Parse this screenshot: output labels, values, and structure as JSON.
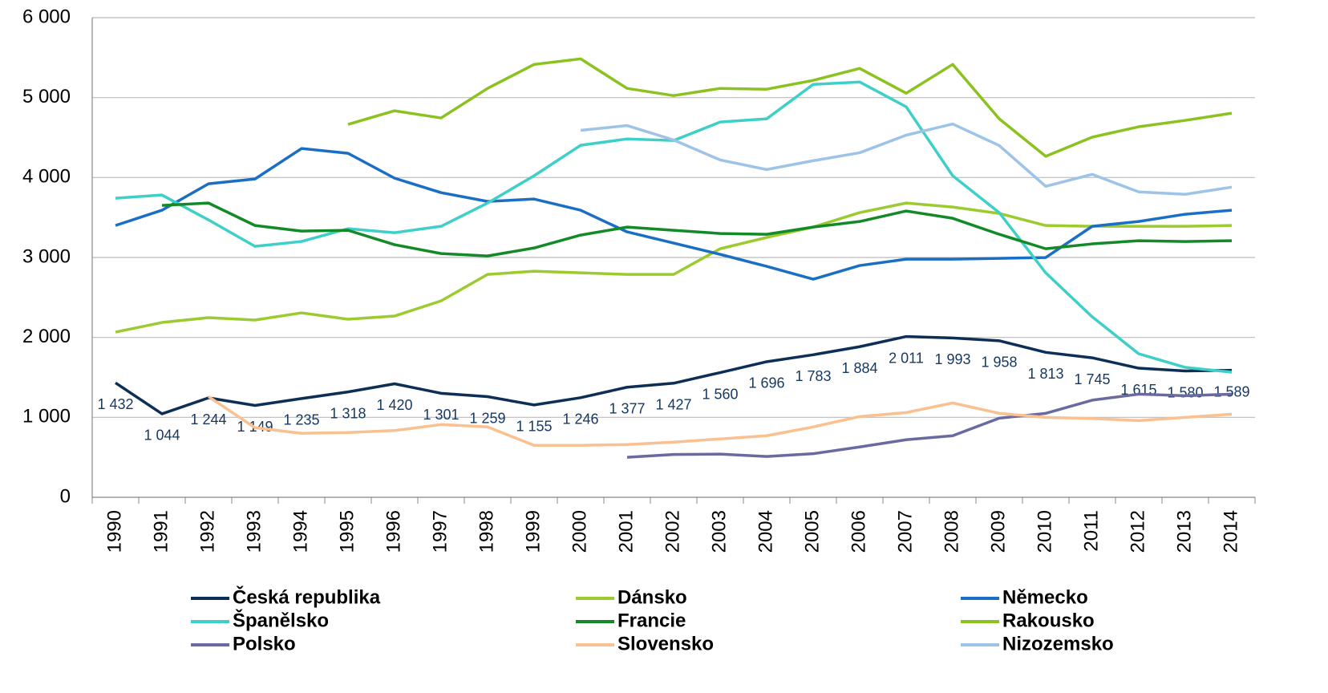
{
  "chart_data": {
    "type": "line",
    "categories": [
      "1990",
      "1991",
      "1992",
      "1993",
      "1994",
      "1995",
      "1996",
      "1997",
      "1998",
      "1999",
      "2000",
      "2001",
      "2002",
      "2003",
      "2004",
      "2005",
      "2006",
      "2007",
      "2008",
      "2009",
      "2010",
      "2011",
      "2012",
      "2013",
      "2014"
    ],
    "ylim": [
      0,
      6000
    ],
    "yticks": [
      0,
      {
        "value": 1000,
        "label": "1 000"
      },
      {
        "value": 2000,
        "label": "2 000"
      },
      {
        "value": 3000,
        "label": "3 000"
      },
      {
        "value": 4000,
        "label": "4 000"
      },
      {
        "value": 5000,
        "label": "5 000"
      },
      {
        "value": 6000,
        "label": "6 000"
      }
    ],
    "grid": true,
    "legend": "bottom",
    "series": [
      {
        "name": "Česká republika",
        "color": "#0d2f55",
        "values": [
          1432,
          1044,
          1244,
          1149,
          1235,
          1318,
          1420,
          1301,
          1259,
          1155,
          1246,
          1377,
          1427,
          1560,
          1696,
          1783,
          1884,
          2011,
          1993,
          1958,
          1813,
          1745,
          1615,
          1580,
          1589
        ],
        "value_labels": [
          "1 432",
          "1 044",
          "1 244",
          "1 149",
          "1 235",
          "1 318",
          "1 420",
          "1 301",
          "1 259",
          "1 155",
          "1 246",
          "1 377",
          "1 427",
          "1 560",
          "1 696",
          "1 783",
          "1 884",
          "2 011",
          "1 993",
          "1 958",
          "1 813",
          "1 745",
          "1 615",
          "1 580",
          "1 589"
        ]
      },
      {
        "name": "Dánsko",
        "color": "#9ccb30",
        "values": [
          2066,
          2187,
          2247,
          2217,
          2307,
          2227,
          2267,
          2457,
          2788,
          2828,
          2808,
          2788,
          2788,
          3109,
          3250,
          3380,
          3561,
          3681,
          3631,
          3551,
          3400,
          3390,
          3390,
          3390,
          3400
        ]
      },
      {
        "name": "Německo",
        "color": "#1a6fc4",
        "values": [
          3400,
          3591,
          3922,
          3982,
          4363,
          4303,
          3992,
          3811,
          3701,
          3731,
          3591,
          3320,
          3180,
          3039,
          2889,
          2728,
          2899,
          2979,
          2979,
          2989,
          2999,
          3390,
          3450,
          3541,
          3591
        ]
      },
      {
        "name": "Španělsko",
        "color": "#3ecfc8",
        "values": [
          3741,
          3781,
          3470,
          3139,
          3200,
          3360,
          3310,
          3390,
          3681,
          4022,
          4403,
          4483,
          4463,
          4694,
          4734,
          5165,
          5195,
          4885,
          4022,
          3561,
          2808,
          2257,
          1795,
          1625,
          1565
        ]
      },
      {
        "name": "Francie",
        "color": "#138a27",
        "values": [
          null,
          3651,
          3681,
          3400,
          3330,
          3340,
          3160,
          3049,
          3019,
          3119,
          3280,
          3380,
          3340,
          3300,
          3290,
          3380,
          3450,
          3581,
          3490,
          3290,
          3109,
          3170,
          3210,
          3200,
          3210
        ]
      },
      {
        "name": "Rakousko",
        "color": "#8cc21f",
        "values": [
          null,
          null,
          null,
          null,
          null,
          4665,
          4835,
          4745,
          5115,
          5415,
          5485,
          5115,
          5025,
          5115,
          5105,
          5215,
          5365,
          5055,
          5415,
          4735,
          4265,
          4505,
          4635,
          4715,
          4805
        ]
      },
      {
        "name": "Polsko",
        "color": "#6a6aa0",
        "values": [
          null,
          null,
          null,
          null,
          null,
          null,
          null,
          null,
          null,
          null,
          null,
          500,
          536,
          540,
          510,
          545,
          630,
          720,
          770,
          990,
          1050,
          1215,
          1290,
          1270,
          1290
        ]
      },
      {
        "name": "Slovensko",
        "color": "#fac090",
        "values": [
          null,
          null,
          1260,
          870,
          800,
          810,
          835,
          910,
          880,
          650,
          650,
          660,
          690,
          730,
          770,
          880,
          1010,
          1060,
          1180,
          1050,
          1000,
          985,
          960,
          1000,
          1040
        ]
      },
      {
        "name": "Nizozemsko",
        "color": "#9dc3e6",
        "values": [
          null,
          null,
          null,
          null,
          null,
          null,
          null,
          null,
          null,
          null,
          4590,
          4650,
          4470,
          4220,
          4100,
          4210,
          4310,
          4530,
          4670,
          4400,
          3890,
          4040,
          3820,
          3790,
          3880
        ]
      }
    ]
  }
}
